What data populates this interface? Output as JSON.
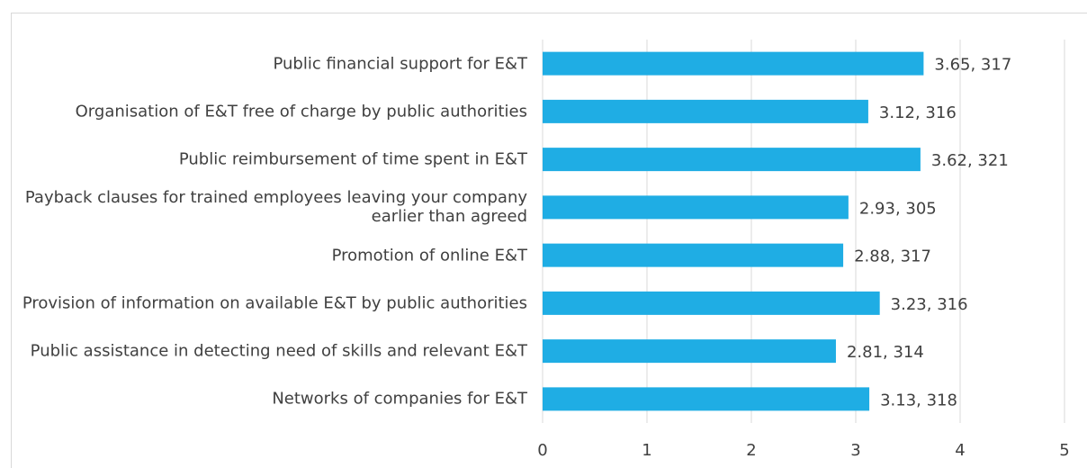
{
  "chart_data": {
    "type": "bar",
    "orientation": "horizontal",
    "categories": [
      "Public financial support for E&T",
      "Organisation of E&T free of charge by public authorities",
      "Public reimbursement of time spent in E&T",
      "Payback clauses for trained employees leaving your company earlier than agreed",
      "Promotion of online E&T",
      "Provision of information on available E&T by public authorities",
      "Public assistance in detecting need of skills and relevant E&T",
      "Networks of companies for E&T"
    ],
    "values": [
      3.65,
      3.12,
      3.62,
      2.93,
      2.88,
      3.23,
      2.81,
      3.13
    ],
    "value_labels": [
      "3.65, 317",
      "3.12, 316",
      "3.62, 321",
      "2.93, 305",
      "2.88, 317",
      "3.23, 316",
      "2.81, 314",
      "3.13, 318"
    ],
    "color": "#1fade4",
    "xlim": [
      0,
      5
    ],
    "xticks": [
      0,
      1,
      2,
      3,
      4,
      5
    ],
    "grid": true
  }
}
